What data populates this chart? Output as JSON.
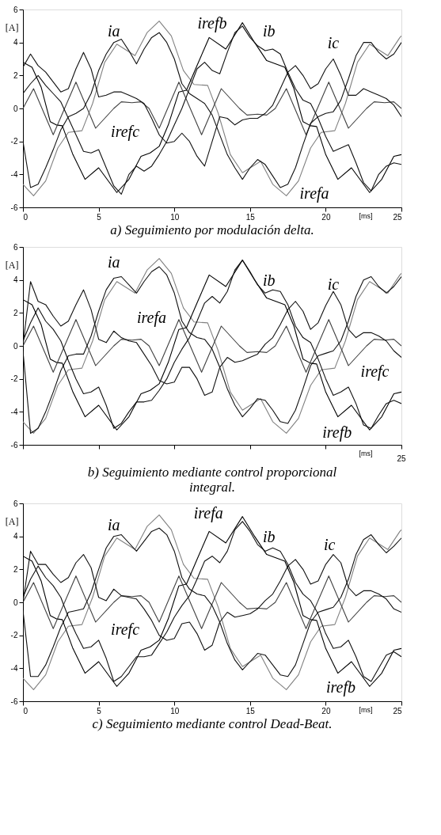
{
  "chart_data": [
    {
      "type": "line",
      "title": "a) Seguimiento por modulación delta.",
      "xlabel": "[ms]",
      "ylabel": "[A]",
      "xlim": [
        0,
        25
      ],
      "ylim": [
        -6,
        6
      ],
      "xticks": [
        0,
        5,
        10,
        15,
        20,
        25
      ],
      "yticks": [
        -6,
        -4,
        -2,
        0,
        2,
        4,
        6
      ],
      "x": [
        0,
        0.5,
        1,
        1.5,
        2,
        2.5,
        3,
        3.5,
        4,
        4.5,
        5,
        5.5,
        6,
        6.5,
        7,
        7.5,
        8,
        8.5,
        9,
        9.5,
        10,
        10.5,
        11,
        11.5,
        12,
        12.5,
        13,
        13.5,
        14,
        14.5,
        15,
        15.5,
        16,
        16.5,
        17,
        17.5,
        18,
        18.5,
        19,
        19.5,
        20,
        20.5,
        21,
        21.5,
        22,
        22.5,
        23,
        23.5,
        24,
        24.5,
        25
      ],
      "series": [
        {
          "color": "#808080",
          "x": [
            0,
            0.7,
            1.5,
            2.3,
            3.0,
            3.9,
            4.6,
            5.4,
            6.2,
            7.4,
            8.2,
            9.0,
            9.8,
            10.6,
            11.3,
            12.2,
            12.9,
            13.7,
            14.5,
            15.7,
            16.5,
            17.4,
            18.2,
            19.0,
            19.7,
            20.6,
            21.3,
            22.1,
            22.9,
            24.1,
            24.9,
            25
          ],
          "values": [
            -4.6,
            -5.3,
            -4.4,
            -2.4,
            -1.45,
            -1.35,
            0.3,
            2.8,
            3.9,
            3.2,
            4.6,
            5.3,
            4.4,
            2.3,
            1.45,
            1.4,
            -0.3,
            -2.8,
            -3.9,
            -3.2,
            -4.6,
            -5.3,
            -4.4,
            -2.4,
            -1.45,
            -1.35,
            0.3,
            2.8,
            3.9,
            3.2,
            4.3,
            4.4
          ]
        },
        {
          "color": "#000000",
          "x": [
            0,
            0.6,
            1.2,
            1.8,
            2.2,
            2.6,
            3.3,
            4.1,
            5.0,
            6.2,
            7.0,
            7.8,
            8.4,
            9.0,
            9.6,
            10.3,
            10.8,
            11.5,
            12.3,
            13.4,
            14.5,
            15.3,
            16.1,
            16.7,
            17.3,
            17.9,
            18.5,
            19.0,
            19.4,
            20.0,
            20.8,
            21.7,
            22.9,
            23.7,
            24.5,
            25
          ],
          "values": [
            2.8,
            2.5,
            1.3,
            -0.8,
            -1.0,
            -1.05,
            -2.8,
            -4.3,
            -3.6,
            -5.1,
            -4.3,
            -2.9,
            -2.7,
            -2.3,
            -1.0,
            1.0,
            1.1,
            2.6,
            4.3,
            3.6,
            5.2,
            4.0,
            2.9,
            2.7,
            2.5,
            1.2,
            -0.8,
            -1.05,
            -1.1,
            -2.8,
            -4.3,
            -3.6,
            -5.1,
            -4.3,
            -2.9,
            -2.8
          ]
        },
        {
          "color": "#404040",
          "x": [
            0,
            0.7,
            2.0,
            3.5,
            4.8,
            6.0,
            6.5,
            7.2,
            7.8,
            8.33,
            9.0,
            10.3,
            11.8,
            13.1,
            14.3,
            14.8,
            15.5,
            16.1,
            16.67,
            17.4,
            18.7,
            20.2,
            21.5,
            22.7,
            23.2,
            23.9,
            24.5,
            25
          ],
          "values": [
            0,
            1.2,
            -1.6,
            1.6,
            -1.2,
            0,
            0.4,
            0.35,
            0.4,
            0,
            -1.2,
            1.6,
            -1.6,
            1.2,
            0,
            -0.4,
            -0.35,
            -0.4,
            0,
            1.2,
            -1.6,
            1.6,
            -1.2,
            0,
            0.4,
            0.35,
            0.4,
            0
          ]
        },
        {
          "color": "#111111",
          "values": [
            -2.0,
            -4.8,
            -4.6,
            -3.6,
            -2.5,
            -1.3,
            -0.5,
            -0.3,
            0.0,
            0.9,
            2.3,
            3.3,
            4.0,
            4.2,
            3.5,
            2.7,
            3.6,
            4.3,
            4.6,
            4.0,
            3.0,
            1.5,
            0.9,
            0.6,
            0.3,
            -0.4,
            -1.6,
            -2.8,
            -3.6,
            -4.3,
            -3.6,
            -3.1,
            -3.4,
            -4.1,
            -4.8,
            -4.6,
            -3.6,
            -2.2,
            -0.9,
            -0.5,
            -0.3,
            -0.2,
            0.5,
            1.8,
            3.2,
            4.0,
            4.0,
            3.4,
            3.0,
            3.3,
            4.0
          ]
        },
        {
          "color": "#111111",
          "values": [
            0.9,
            1.5,
            2.0,
            1.4,
            0.9,
            0.4,
            -0.6,
            -1.6,
            -2.6,
            -2.7,
            -2.5,
            -3.6,
            -4.7,
            -5.2,
            -4.0,
            -3.5,
            -3.8,
            -3.5,
            -2.8,
            -2.0,
            -1.0,
            0.0,
            1.2,
            2.4,
            2.8,
            2.3,
            2.1,
            3.4,
            4.6,
            5.0,
            4.3,
            3.8,
            3.5,
            3.6,
            3.3,
            2.2,
            1.2,
            0.5,
            0.3,
            -0.6,
            -1.7,
            -2.6,
            -2.4,
            -2.2,
            -3.3,
            -4.5,
            -5.0,
            -4.0,
            -3.5,
            -3.3,
            -3.4
          ]
        },
        {
          "color": "#111111",
          "values": [
            2.5,
            3.3,
            2.6,
            2.2,
            1.6,
            1.0,
            1.2,
            2.4,
            3.4,
            2.4,
            0.7,
            0.8,
            1.0,
            1.0,
            0.8,
            0.6,
            0.3,
            -0.6,
            -1.6,
            -2.1,
            -2.0,
            -1.5,
            -2.0,
            -2.9,
            -3.5,
            -2.0,
            -0.5,
            -0.6,
            -1.0,
            -0.7,
            -0.6,
            -0.6,
            -0.3,
            0.2,
            1.2,
            2.2,
            2.6,
            2.0,
            1.2,
            1.5,
            2.4,
            3.0,
            2.0,
            0.8,
            0.8,
            1.2,
            1.0,
            0.8,
            0.6,
            0.2,
            -0.5
          ]
        }
      ],
      "annotations": [
        "ia",
        "irefb",
        "ib",
        "ic",
        "irefc",
        "irefa"
      ]
    },
    {
      "type": "line",
      "title": "b) Seguimiento mediante control proporcional integral.",
      "xlabel": "[ms]",
      "ylabel": "[A]",
      "xlim": [
        0,
        25
      ],
      "ylim": [
        -6,
        6
      ],
      "xticks": [
        0,
        5,
        10,
        15,
        20,
        25
      ],
      "yticks": [
        -6,
        -4,
        -2,
        0,
        2,
        4,
        6
      ],
      "tick_labels": "y",
      "x": [
        0,
        0.5,
        1,
        1.5,
        2,
        2.5,
        3,
        3.5,
        4,
        4.5,
        5,
        5.5,
        6,
        6.5,
        7,
        7.5,
        8,
        8.5,
        9,
        9.5,
        10,
        10.5,
        11,
        11.5,
        12,
        12.5,
        13,
        13.5,
        14,
        14.5,
        15,
        15.5,
        16,
        16.5,
        17,
        17.5,
        18,
        18.5,
        19,
        19.5,
        20,
        20.5,
        21,
        21.5,
        22,
        22.5,
        23,
        23.5,
        24,
        24.5,
        25
      ],
      "series": [
        {
          "color": "#808080",
          "x": [
            0,
            0.7,
            1.5,
            2.3,
            3.0,
            3.9,
            4.6,
            5.4,
            6.2,
            7.4,
            8.2,
            9.0,
            9.8,
            10.6,
            11.3,
            12.2,
            12.9,
            13.7,
            14.5,
            15.7,
            16.5,
            17.4,
            18.2,
            19.0,
            19.7,
            20.6,
            21.3,
            22.1,
            22.9,
            24.1,
            24.9,
            25
          ],
          "values": [
            -4.6,
            -5.3,
            -4.4,
            -2.4,
            -1.45,
            -1.35,
            0.3,
            2.8,
            3.9,
            3.2,
            4.6,
            5.3,
            4.4,
            2.3,
            1.45,
            1.4,
            -0.3,
            -2.8,
            -3.9,
            -3.2,
            -4.6,
            -5.3,
            -4.4,
            -2.4,
            -1.45,
            -1.35,
            0.3,
            2.8,
            3.9,
            3.2,
            4.3,
            4.4
          ]
        },
        {
          "color": "#000000",
          "x": [
            0,
            0.6,
            1.2,
            1.8,
            2.2,
            2.6,
            3.3,
            4.1,
            5.0,
            6.2,
            7.0,
            7.8,
            8.4,
            9.0,
            9.6,
            10.3,
            10.8,
            11.5,
            12.3,
            13.4,
            14.5,
            15.3,
            16.1,
            16.7,
            17.3,
            17.9,
            18.5,
            19.0,
            19.4,
            20.0,
            20.8,
            21.7,
            22.9,
            23.7,
            24.5,
            25
          ],
          "values": [
            2.8,
            2.5,
            1.3,
            -0.8,
            -1.0,
            -1.05,
            -2.8,
            -4.3,
            -3.6,
            -5.1,
            -4.3,
            -2.9,
            -2.7,
            -2.3,
            -1.0,
            1.0,
            1.1,
            2.6,
            4.3,
            3.6,
            5.2,
            4.0,
            2.9,
            2.7,
            2.5,
            1.2,
            -0.8,
            -1.05,
            -1.1,
            -2.8,
            -4.3,
            -3.6,
            -5.1,
            -4.3,
            -2.9,
            -2.8
          ]
        },
        {
          "color": "#404040",
          "x": [
            0,
            0.7,
            2.0,
            3.5,
            4.8,
            6.0,
            6.5,
            7.2,
            7.8,
            8.33,
            9.0,
            10.3,
            11.8,
            13.1,
            14.3,
            14.8,
            15.5,
            16.1,
            16.67,
            17.4,
            18.7,
            20.2,
            21.5,
            22.7,
            23.2,
            23.9,
            24.5,
            25
          ],
          "values": [
            0,
            1.2,
            -1.6,
            1.6,
            -1.2,
            0,
            0.4,
            0.35,
            0.4,
            0,
            -1.2,
            1.6,
            -1.6,
            1.2,
            0,
            -0.4,
            -0.35,
            -0.4,
            0,
            1.2,
            -1.6,
            1.6,
            -1.2,
            0,
            0.4,
            0.35,
            0.4,
            0
          ]
        },
        {
          "color": "#111111",
          "values": [
            -0.3,
            -5.3,
            -5.0,
            -4.0,
            -2.8,
            -1.5,
            -0.6,
            -0.5,
            -0.5,
            0.6,
            2.1,
            3.4,
            4.1,
            4.2,
            3.7,
            3.2,
            3.9,
            4.5,
            4.8,
            4.3,
            3.2,
            1.5,
            0.8,
            0.5,
            0.4,
            -0.2,
            -1.3,
            -2.6,
            -3.6,
            -4.3,
            -3.8,
            -3.2,
            -3.3,
            -3.9,
            -4.6,
            -4.7,
            -3.9,
            -2.6,
            -1.2,
            -0.6,
            -0.45,
            -0.3,
            0.3,
            1.5,
            3.0,
            4.0,
            4.2,
            3.6,
            3.2,
            3.6,
            4.2
          ]
        },
        {
          "color": "#111111",
          "values": [
            0.3,
            1.4,
            2.3,
            1.5,
            1.0,
            0.3,
            -0.9,
            -2.0,
            -2.9,
            -2.8,
            -2.5,
            -3.6,
            -5.0,
            -4.7,
            -4.0,
            -3.4,
            -3.4,
            -3.3,
            -2.7,
            -2.0,
            -1.0,
            -0.2,
            0.5,
            1.5,
            2.6,
            3.0,
            2.6,
            3.3,
            4.6,
            5.2,
            4.5,
            3.7,
            3.2,
            3.4,
            3.3,
            2.5,
            1.2,
            0.5,
            0.2,
            -0.8,
            -2.0,
            -3.0,
            -2.8,
            -2.5,
            -3.5,
            -4.8,
            -5.0,
            -4.2,
            -3.5,
            -3.3,
            -3.5
          ]
        },
        {
          "color": "#111111",
          "values": [
            0.0,
            3.9,
            2.7,
            2.5,
            1.8,
            1.2,
            1.5,
            2.5,
            3.4,
            2.2,
            0.4,
            0.2,
            0.9,
            0.5,
            0.3,
            0.2,
            -0.5,
            -1.2,
            -2.1,
            -2.3,
            -2.2,
            -1.3,
            -1.3,
            -2.0,
            -3.0,
            -2.8,
            -1.3,
            -0.7,
            -1.0,
            -0.9,
            -0.7,
            -0.5,
            0.1,
            0.5,
            1.3,
            2.2,
            2.7,
            2.1,
            1.0,
            1.4,
            2.45,
            3.3,
            2.5,
            1.0,
            0.5,
            0.8,
            0.8,
            0.6,
            0.3,
            -0.3,
            -0.7
          ]
        }
      ],
      "annotations": [
        "ia",
        "irefa",
        "ib",
        "ic",
        "irefc",
        "irefb",
        "25"
      ]
    },
    {
      "type": "line",
      "title": "c) Seguimiento mediante control Dead-Beat.",
      "xlabel": "[ms]",
      "ylabel": "[A]",
      "xlim": [
        0,
        25
      ],
      "ylim": [
        -6,
        6
      ],
      "xticks": [
        0,
        5,
        10,
        15,
        20,
        25
      ],
      "yticks": [
        -6,
        -4,
        -2,
        0,
        2,
        4,
        6
      ],
      "x": [
        0,
        0.5,
        1,
        1.5,
        2,
        2.5,
        3,
        3.5,
        4,
        4.5,
        5,
        5.5,
        6,
        6.5,
        7,
        7.5,
        8,
        8.5,
        9,
        9.5,
        10,
        10.5,
        11,
        11.5,
        12,
        12.5,
        13,
        13.5,
        14,
        14.5,
        15,
        15.5,
        16,
        16.5,
        17,
        17.5,
        18,
        18.5,
        19,
        19.5,
        20,
        20.5,
        21,
        21.5,
        22,
        22.5,
        23,
        23.5,
        24,
        24.5,
        25
      ],
      "series": [
        {
          "color": "#808080",
          "x": [
            0,
            0.7,
            1.5,
            2.3,
            3.0,
            3.9,
            4.6,
            5.4,
            6.2,
            7.4,
            8.2,
            9.0,
            9.8,
            10.6,
            11.3,
            12.2,
            12.9,
            13.7,
            14.5,
            15.7,
            16.5,
            17.4,
            18.2,
            19.0,
            19.7,
            20.6,
            21.3,
            22.1,
            22.9,
            24.1,
            24.9,
            25
          ],
          "values": [
            -4.6,
            -5.3,
            -4.4,
            -2.4,
            -1.45,
            -1.35,
            0.3,
            2.8,
            3.9,
            3.2,
            4.6,
            5.3,
            4.4,
            2.3,
            1.45,
            1.4,
            -0.3,
            -2.8,
            -3.9,
            -3.2,
            -4.6,
            -5.3,
            -4.4,
            -2.4,
            -1.45,
            -1.35,
            0.3,
            2.8,
            3.9,
            3.2,
            4.3,
            4.4
          ]
        },
        {
          "color": "#000000",
          "x": [
            0,
            0.6,
            1.2,
            1.8,
            2.2,
            2.6,
            3.3,
            4.1,
            5.0,
            6.2,
            7.0,
            7.8,
            8.4,
            9.0,
            9.6,
            10.3,
            10.8,
            11.5,
            12.3,
            13.4,
            14.5,
            15.3,
            16.1,
            16.7,
            17.3,
            17.9,
            18.5,
            19.0,
            19.4,
            20.0,
            20.8,
            21.7,
            22.9,
            23.7,
            24.5,
            25
          ],
          "values": [
            2.8,
            2.5,
            1.3,
            -0.8,
            -1.0,
            -1.05,
            -2.8,
            -4.3,
            -3.6,
            -5.1,
            -4.3,
            -2.9,
            -2.7,
            -2.3,
            -1.0,
            1.0,
            1.1,
            2.6,
            4.3,
            3.6,
            5.2,
            4.0,
            2.9,
            2.7,
            2.5,
            1.2,
            -0.8,
            -1.05,
            -1.1,
            -2.8,
            -4.3,
            -3.6,
            -5.1,
            -4.3,
            -2.9,
            -2.8
          ]
        },
        {
          "color": "#404040",
          "x": [
            0,
            0.7,
            2.0,
            3.5,
            4.8,
            6.0,
            6.5,
            7.2,
            7.8,
            8.33,
            9.0,
            10.3,
            11.8,
            13.1,
            14.3,
            14.8,
            15.5,
            16.1,
            16.67,
            17.4,
            18.7,
            20.2,
            21.5,
            22.7,
            23.2,
            23.9,
            24.5,
            25
          ],
          "values": [
            0,
            1.2,
            -1.6,
            1.6,
            -1.2,
            0,
            0.4,
            0.35,
            0.4,
            0,
            -1.2,
            1.6,
            -1.6,
            1.2,
            0,
            -0.4,
            -0.35,
            -0.4,
            0,
            1.2,
            -1.6,
            1.6,
            -1.2,
            0,
            0.4,
            0.35,
            0.4,
            0
          ]
        },
        {
          "color": "#111111",
          "values": [
            -0.5,
            -4.5,
            -4.5,
            -3.8,
            -2.7,
            -1.5,
            -0.6,
            -0.5,
            -0.4,
            0.6,
            2.0,
            3.3,
            4.0,
            4.1,
            3.6,
            3.1,
            3.7,
            4.3,
            4.5,
            4.1,
            3.1,
            1.5,
            0.8,
            0.5,
            0.4,
            -0.2,
            -1.2,
            -2.5,
            -3.5,
            -4.1,
            -3.6,
            -3.1,
            -3.2,
            -3.8,
            -4.4,
            -4.5,
            -3.8,
            -2.5,
            -1.2,
            -0.6,
            -0.45,
            -0.3,
            0.3,
            1.4,
            2.9,
            3.8,
            4.1,
            3.5,
            3.0,
            3.4,
            3.9
          ]
        },
        {
          "color": "#111111",
          "values": [
            0.3,
            1.4,
            2.2,
            1.5,
            1.0,
            0.3,
            -0.9,
            -1.9,
            -2.8,
            -2.7,
            -2.3,
            -3.4,
            -4.8,
            -4.5,
            -3.9,
            -3.3,
            -3.3,
            -3.2,
            -2.5,
            -1.8,
            -0.9,
            -0.2,
            0.4,
            1.4,
            2.5,
            2.8,
            2.4,
            3.1,
            4.4,
            4.9,
            4.3,
            3.5,
            3.1,
            3.3,
            3.1,
            2.3,
            1.2,
            0.5,
            0.1,
            -0.7,
            -1.9,
            -2.8,
            -2.7,
            -2.3,
            -3.3,
            -4.5,
            -4.8,
            -4.0,
            -3.2,
            -3.0,
            -3.3
          ]
        },
        {
          "color": "#111111",
          "values": [
            0.0,
            3.1,
            2.3,
            2.3,
            1.7,
            1.2,
            1.5,
            2.4,
            2.9,
            2.1,
            0.3,
            0.1,
            0.8,
            0.4,
            0.3,
            0.2,
            -0.4,
            -1.1,
            -2.0,
            -2.3,
            -2.2,
            -1.3,
            -1.2,
            -1.9,
            -2.9,
            -2.6,
            -1.2,
            -0.6,
            -0.9,
            -0.8,
            -0.7,
            -0.4,
            0.1,
            0.5,
            1.3,
            2.2,
            2.6,
            2.0,
            1.1,
            1.3,
            2.3,
            2.9,
            2.4,
            0.9,
            0.4,
            0.7,
            0.7,
            0.5,
            0.2,
            -0.4,
            -0.6
          ]
        }
      ],
      "annotations": [
        "ia",
        "irefa",
        "ib",
        "ic",
        "irefc",
        "irefb"
      ]
    }
  ]
}
